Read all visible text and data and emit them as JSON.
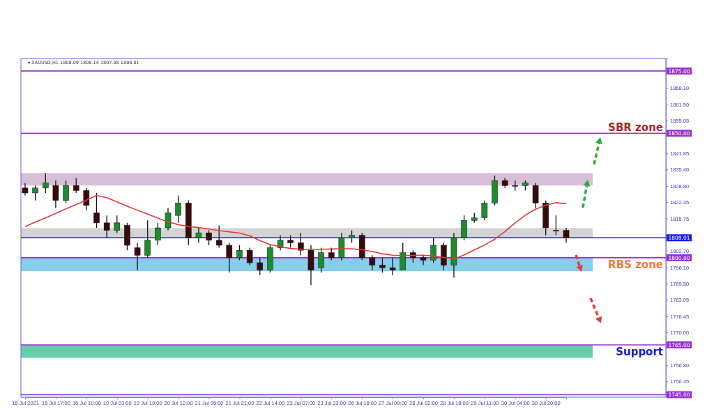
{
  "chart_data": {
    "type": "candlestick",
    "categories": [
      "15 Jul 2021",
      null,
      null,
      "15 Jul 17:00",
      null,
      null,
      "16 Jul 10:00",
      null,
      null,
      "19 Jul 03:00",
      null,
      null,
      "19 Jul 19:00",
      null,
      null,
      "20 Jul 12:00",
      null,
      null,
      "21 Jul 05:00",
      null,
      null,
      "21 Jul 21:00",
      null,
      null,
      "22 Jul 14:00",
      null,
      null,
      "23 Jul 07:00",
      null,
      null,
      "23 Jul 23:00",
      null,
      null,
      "26 Jul 16:00",
      null,
      null,
      "27 Jul 09:00",
      null,
      null,
      "28 Jul 02:00",
      null,
      null,
      "28 Jul 18:00",
      null,
      null,
      "29 Jul 11:00",
      null,
      null,
      "30 Jul 04:00",
      null,
      null,
      "30 Jul 20:00",
      null,
      null
    ],
    "series": [
      {
        "type": "candlestick",
        "ohlc": [
          [
            1828,
            1830,
            1825,
            1826
          ],
          [
            1826,
            1829,
            1823,
            1828
          ],
          [
            1828,
            1834,
            1826,
            1830
          ],
          [
            1829,
            1831,
            1820,
            1823
          ],
          [
            1823,
            1831,
            1822,
            1829
          ],
          [
            1829,
            1832,
            1826,
            1827
          ],
          [
            1827,
            1828,
            1819,
            1821
          ],
          [
            1818,
            1826,
            1812,
            1814
          ],
          [
            1814,
            1817,
            1808,
            1811
          ],
          [
            1811,
            1817,
            1810,
            1814
          ],
          [
            1813,
            1814,
            1803,
            1805
          ],
          [
            1804,
            1806,
            1795,
            1801
          ],
          [
            1801,
            1815,
            1800,
            1807
          ],
          [
            1807,
            1814,
            1805,
            1812
          ],
          [
            1812,
            1820,
            1811,
            1818
          ],
          [
            1817,
            1825,
            1814,
            1822
          ],
          [
            1822,
            1823,
            1805,
            1808
          ],
          [
            1808,
            1812,
            1806,
            1810
          ],
          [
            1810,
            1811,
            1805,
            1807
          ],
          [
            1807,
            1813,
            1804,
            1805
          ],
          [
            1805,
            1806,
            1794,
            1800
          ],
          [
            1800,
            1805,
            1799,
            1803
          ],
          [
            1803,
            1804,
            1797,
            1798
          ],
          [
            1798,
            1800,
            1793,
            1795
          ],
          [
            1795,
            1805,
            1794,
            1804
          ],
          [
            1804,
            1809,
            1803,
            1807
          ],
          [
            1807,
            1809,
            1804,
            1806
          ],
          [
            1806,
            1810,
            1801,
            1803
          ],
          [
            1803,
            1805,
            1789,
            1795
          ],
          [
            1796,
            1804,
            1794,
            1802
          ],
          [
            1802,
            1804,
            1799,
            1800
          ],
          [
            1800,
            1810,
            1799,
            1808
          ],
          [
            1808,
            1811,
            1806,
            1809
          ],
          [
            1809,
            1810,
            1799,
            1800
          ],
          [
            1800,
            1801,
            1795,
            1797
          ],
          [
            1797,
            1800,
            1794,
            1796
          ],
          [
            1796,
            1800,
            1793,
            1795
          ],
          [
            1795,
            1806,
            1795,
            1802
          ],
          [
            1802,
            1803,
            1798,
            1800
          ],
          [
            1800,
            1801,
            1797,
            1799
          ],
          [
            1799,
            1808,
            1798,
            1805
          ],
          [
            1805,
            1806,
            1795,
            1797
          ],
          [
            1797,
            1810,
            1792,
            1808
          ],
          [
            1808,
            1817,
            1807,
            1815
          ],
          [
            1815,
            1818,
            1814,
            1816
          ],
          [
            1816,
            1823,
            1815,
            1822
          ],
          [
            1822,
            1833,
            1821,
            1831
          ],
          [
            1831,
            1832,
            1828,
            1829
          ],
          [
            1829,
            1831,
            1827,
            1829
          ],
          [
            1829,
            1831,
            1827,
            1830
          ],
          [
            1829,
            1830,
            1820,
            1822
          ],
          [
            1822,
            1823,
            1809,
            1812
          ],
          [
            1811,
            1817,
            1809,
            1811
          ],
          [
            1811,
            1812,
            1806,
            1808
          ]
        ],
        "colors": [
          "#3a0a0a",
          "#1e8c2e",
          "#1e8c2e",
          "#3a0a0a",
          "#1e8c2e",
          "#3a0a0a",
          "#3a0a0a",
          "#3a0a0a",
          "#3a0a0a",
          "#1e8c2e",
          "#3a0a0a",
          "#3a0a0a",
          "#1e8c2e",
          "#1e8c2e",
          "#1e8c2e",
          "#1e8c2e",
          "#3a0a0a",
          "#1e8c2e",
          "#3a0a0a",
          "#3a0a0a",
          "#3a0a0a",
          "#1e8c2e",
          "#3a0a0a",
          "#3a0a0a",
          "#1e8c2e",
          "#1e8c2e",
          "#3a0a0a",
          "#3a0a0a",
          "#3a0a0a",
          "#1e8c2e",
          "#3a0a0a",
          "#1e8c2e",
          "#1e8c2e",
          "#3a0a0a",
          "#3a0a0a",
          "#3a0a0a",
          "#3a0a0a",
          "#1e8c2e",
          "#3a0a0a",
          "#3a0a0a",
          "#1e8c2e",
          "#3a0a0a",
          "#1e8c2e",
          "#1e8c2e",
          "#1e8c2e",
          "#1e8c2e",
          "#1e8c2e",
          "#3a0a0a",
          "#3a0a0a",
          "#1e8c2e",
          "#3a0a0a",
          "#3a0a0a",
          "#3a0a0a",
          "#3a0a0a"
        ]
      },
      {
        "type": "line",
        "color": "#e53935",
        "values": [
          1812.5,
          1814.3,
          1816.0,
          1817.8,
          1819.6,
          1821.4,
          1823.1,
          1825.0,
          1824.1,
          1822.4,
          1820.7,
          1819.1,
          1817.5,
          1815.9,
          1814.4,
          1813.3,
          1812.5,
          1812.1,
          1811.5,
          1810.9,
          1810.4,
          1809.9,
          1808.8,
          1806.9,
          1805.3,
          1804.4,
          1803.7,
          1803.4,
          1803.4,
          1803.4,
          1803.5,
          1803.6,
          1803.6,
          1803.2,
          1802.5,
          1801.6,
          1801.0,
          1800.8,
          1800.9,
          1801.0,
          1800.7,
          1800.1,
          1799.5,
          1801.1,
          1803.1,
          1805.1,
          1807.4,
          1810.5,
          1814.0,
          1817.1,
          1819.5,
          1821.1,
          1822.1,
          1821.7
        ]
      }
    ],
    "ylim": [
      1744,
      1880
    ],
    "yticks": [
      {
        "value": 1868.1,
        "label": "1868.10"
      },
      {
        "value": 1861.5,
        "label": "1861.50"
      },
      {
        "value": 1855.05,
        "label": "1855.05"
      },
      {
        "value": 1841.85,
        "label": "1841.85"
      },
      {
        "value": 1835.4,
        "label": "1835.40"
      },
      {
        "value": 1828.8,
        "label": "1828.80"
      },
      {
        "value": 1822.35,
        "label": "1822.35"
      },
      {
        "value": 1815.75,
        "label": "1815.75"
      },
      {
        "value": 1802.7,
        "label": "1802.70"
      },
      {
        "value": 1796.1,
        "label": "1796.10"
      },
      {
        "value": 1789.5,
        "label": "1789.50"
      },
      {
        "value": 1783.05,
        "label": "1783.05"
      },
      {
        "value": 1776.45,
        "label": "1776.45"
      },
      {
        "value": 1770,
        "label": "1770.00"
      },
      {
        "value": 1756.8,
        "label": "1756.80"
      },
      {
        "value": 1750.35,
        "label": "1750.35"
      }
    ],
    "bands": [
      {
        "axis": "y",
        "from": 1829,
        "to": 1834,
        "color": "#d8bfd8"
      },
      {
        "axis": "y",
        "from": 1808,
        "to": 1811.9,
        "color": "#d3d3d3"
      },
      {
        "axis": "y",
        "from": 1794.6,
        "to": 1800,
        "color": "#87ceeb"
      },
      {
        "axis": "y",
        "from": 1759.8,
        "to": 1765,
        "color": "#66cdaa"
      }
    ],
    "ref_lines": [
      {
        "axis": "y",
        "value": 1875,
        "label": "1875.00",
        "color": "#9932cc"
      },
      {
        "axis": "y",
        "value": 1850,
        "label": "1850.00",
        "color": "#9932cc"
      },
      {
        "axis": "y",
        "value": 1808.01,
        "label": "1808.01",
        "color": "#1a1aff"
      },
      {
        "axis": "y",
        "value": 1800,
        "label": "1800.00",
        "color": "#9932cc"
      },
      {
        "axis": "y",
        "value": 1765,
        "label": "1765.00",
        "color": "#9932cc"
      },
      {
        "axis": "y",
        "value": 1745,
        "label": "1745.00",
        "color": "#9932cc"
      }
    ],
    "annotations": [
      "▾ XAUUSD,H1  1808.09 1808.14 1807.98 1808.01",
      {
        "text": "SBR zone",
        "y": 1850
      },
      {
        "text": "RBS zone",
        "y": 1800
      },
      {
        "text": "Support",
        "y": 1765
      }
    ]
  }
}
